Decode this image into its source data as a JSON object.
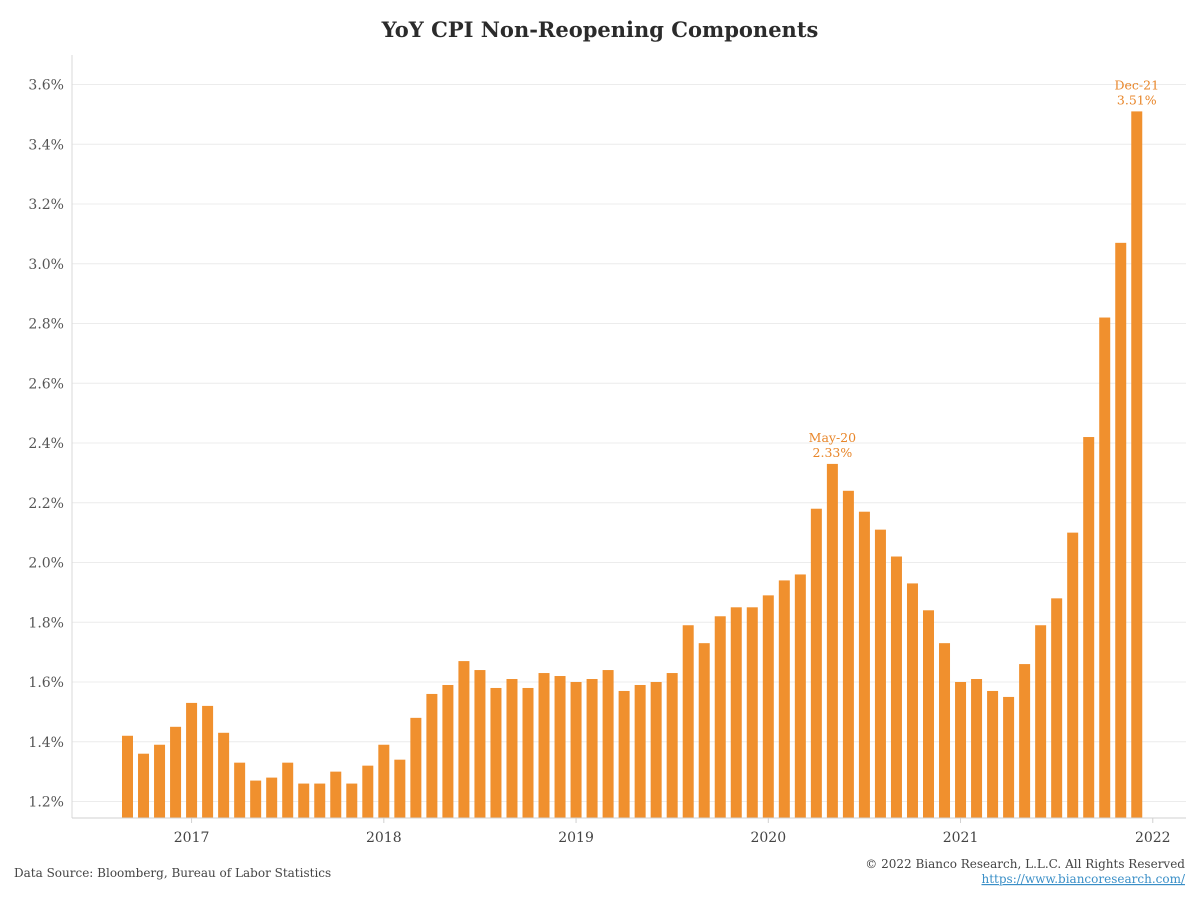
{
  "chart_data": {
    "type": "bar",
    "title": "YoY CPI Non-Reopening Components",
    "xlabel": "",
    "ylabel": "",
    "ylim": [
      1.15,
      3.7
    ],
    "yticks": [
      "1.2%",
      "1.4%",
      "1.6%",
      "1.8%",
      "2.0%",
      "2.2%",
      "2.4%",
      "2.6%",
      "2.8%",
      "3.0%",
      "3.2%",
      "3.4%",
      "3.6%"
    ],
    "ytick_values": [
      1.2,
      1.4,
      1.6,
      1.8,
      2.0,
      2.2,
      2.4,
      2.6,
      2.8,
      3.0,
      3.2,
      3.4,
      3.6
    ],
    "xticks": [
      {
        "label": "2017",
        "date": "2017-01"
      },
      {
        "label": "2018",
        "date": "2018-01"
      },
      {
        "label": "2019",
        "date": "2019-01"
      },
      {
        "label": "2020",
        "date": "2020-01"
      },
      {
        "label": "2021",
        "date": "2021-01"
      },
      {
        "label": "2022",
        "date": "2022-01"
      }
    ],
    "bar_color": "#f0902e",
    "grid": true,
    "categories": [
      "2016-09",
      "2016-10",
      "2016-11",
      "2016-12",
      "2017-01",
      "2017-02",
      "2017-03",
      "2017-04",
      "2017-05",
      "2017-06",
      "2017-07",
      "2017-08",
      "2017-09",
      "2017-10",
      "2017-11",
      "2017-12",
      "2018-01",
      "2018-02",
      "2018-03",
      "2018-04",
      "2018-05",
      "2018-06",
      "2018-07",
      "2018-08",
      "2018-09",
      "2018-10",
      "2018-11",
      "2018-12",
      "2019-01",
      "2019-02",
      "2019-03",
      "2019-04",
      "2019-05",
      "2019-06",
      "2019-07",
      "2019-08",
      "2019-09",
      "2019-10",
      "2019-11",
      "2019-12",
      "2020-01",
      "2020-02",
      "2020-03",
      "2020-04",
      "2020-05",
      "2020-06",
      "2020-07",
      "2020-08",
      "2020-09",
      "2020-10",
      "2020-11",
      "2020-12",
      "2021-01",
      "2021-02",
      "2021-03",
      "2021-04",
      "2021-05",
      "2021-06",
      "2021-07",
      "2021-08",
      "2021-09",
      "2021-10",
      "2021-11",
      "2021-12"
    ],
    "values": [
      1.42,
      1.36,
      1.39,
      1.45,
      1.53,
      1.52,
      1.43,
      1.33,
      1.27,
      1.28,
      1.33,
      1.26,
      1.26,
      1.3,
      1.26,
      1.32,
      1.39,
      1.34,
      1.48,
      1.56,
      1.59,
      1.67,
      1.64,
      1.58,
      1.61,
      1.58,
      1.63,
      1.62,
      1.6,
      1.61,
      1.64,
      1.57,
      1.59,
      1.6,
      1.63,
      1.79,
      1.73,
      1.82,
      1.85,
      1.85,
      1.89,
      1.94,
      1.96,
      2.18,
      2.33,
      2.24,
      2.17,
      2.11,
      2.02,
      1.93,
      1.84,
      1.73,
      1.6,
      1.61,
      1.57,
      1.55,
      1.66,
      1.79,
      1.88,
      2.1,
      2.42,
      2.82,
      3.07,
      3.51
    ],
    "annotations": [
      {
        "category": "2020-05",
        "label": "May-20",
        "value_label": "2.33%"
      },
      {
        "category": "2021-12",
        "label": "Dec-21",
        "value_label": "3.51%"
      }
    ]
  },
  "footer": {
    "source": "Data Source: Bloomberg, Bureau of Labor Statistics",
    "copyright": "© 2022 Bianco Research, L.L.C. All Rights Reserved",
    "url": "https://www.biancoresearch.com/"
  }
}
